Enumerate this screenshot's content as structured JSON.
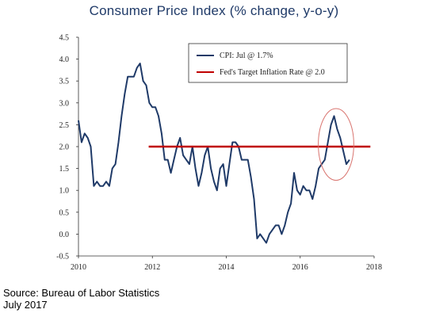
{
  "chart_data": {
    "type": "line",
    "title": "Consumer Price Index (% change, y-o-y)",
    "xlabel": "",
    "ylabel": "",
    "xlim": [
      2010,
      2018
    ],
    "ylim": [
      -0.5,
      4.5
    ],
    "x_ticks": [
      "2010",
      "2012",
      "2014",
      "2016",
      "2018"
    ],
    "y_ticks": [
      "4.5",
      "4.0",
      "3.5",
      "3.0",
      "2.5",
      "2.0",
      "1.5",
      "1.0",
      "0.5",
      "0.0",
      "-0.5"
    ],
    "legend_position": "top-right",
    "grid": false,
    "series": [
      {
        "name": "CPI: Jul @ 1.7%",
        "color": "#1f3a68",
        "x_start": 2010.0,
        "x_step": 0.083333,
        "values": [
          2.6,
          2.1,
          2.3,
          2.2,
          2.0,
          1.1,
          1.2,
          1.1,
          1.1,
          1.2,
          1.1,
          1.5,
          1.6,
          2.1,
          2.7,
          3.2,
          3.6,
          3.6,
          3.6,
          3.8,
          3.9,
          3.5,
          3.4,
          3.0,
          2.9,
          2.9,
          2.7,
          2.3,
          1.7,
          1.7,
          1.4,
          1.7,
          2.0,
          2.2,
          1.8,
          1.7,
          1.6,
          2.0,
          1.5,
          1.1,
          1.4,
          1.8,
          2.0,
          1.5,
          1.2,
          1.0,
          1.5,
          1.6,
          1.1,
          1.6,
          2.1,
          2.1,
          2.0,
          1.7,
          1.7,
          1.7,
          1.3,
          0.8,
          -0.1,
          0.0,
          -0.1,
          -0.2,
          0.0,
          0.1,
          0.2,
          0.2,
          0.0,
          0.2,
          0.5,
          0.7,
          1.4,
          1.0,
          0.9,
          1.1,
          1.0,
          1.0,
          0.8,
          1.1,
          1.5,
          1.6,
          1.7,
          2.1,
          2.5,
          2.7,
          2.4,
          2.2,
          1.9,
          1.6,
          1.7
        ]
      },
      {
        "name": "Fed's Target Inflation Rate @ 2.0",
        "color": "#c00000",
        "x": [
          2011.9,
          2017.9
        ],
        "values": [
          2.0,
          2.0
        ]
      }
    ],
    "annotations": [
      {
        "type": "ellipse",
        "color": "#d9746f",
        "cx": 2016.97,
        "cy": 2.05,
        "rx": 0.48,
        "ry": 0.82
      }
    ]
  },
  "source": {
    "line1": "Source: Bureau of Labor Statistics",
    "line2": "July 2017"
  }
}
